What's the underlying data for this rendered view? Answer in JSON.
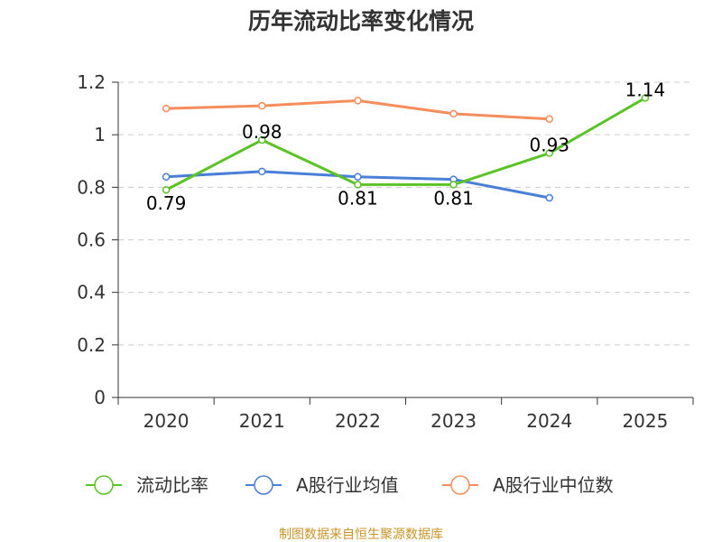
{
  "chart_data": {
    "type": "line",
    "title": "历年流动比率变化情况",
    "categories": [
      "2020",
      "2021",
      "2022",
      "2023",
      "2024",
      "2025"
    ],
    "y_ticks": [
      "0",
      "0.2",
      "0.4",
      "0.6",
      "0.8",
      "1",
      "1.2"
    ],
    "ylim": [
      0,
      1.2
    ],
    "grid": true,
    "legend_position": "bottom",
    "series": [
      {
        "name": "流动比率",
        "color": "#5bc227",
        "values": [
          0.79,
          0.98,
          0.81,
          0.81,
          0.93,
          1.14
        ],
        "labels": [
          "0.79",
          "0.98",
          "0.81",
          "0.81",
          "0.93",
          "1.14"
        ]
      },
      {
        "name": "A股行业均值",
        "color": "#4a7fd8",
        "values": [
          0.84,
          0.86,
          0.84,
          0.83,
          0.76,
          null
        ]
      },
      {
        "name": "A股行业中位数",
        "color": "#f68d5c",
        "values": [
          1.1,
          1.11,
          1.13,
          1.08,
          1.06,
          null
        ]
      }
    ]
  },
  "source_text": "制图数据来自恒生聚源数据库",
  "colors": {
    "axis": "#333333",
    "grid": "#cccccc",
    "source": "#c8952a"
  }
}
